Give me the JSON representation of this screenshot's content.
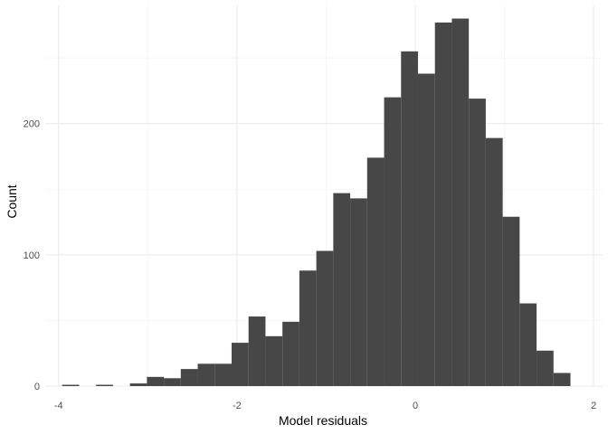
{
  "chart_data": {
    "type": "histogram",
    "xlabel": "Model residuals",
    "ylabel": "Count",
    "xlim": [
      -4.15,
      2.1
    ],
    "ylim": [
      0,
      290
    ],
    "grid": true,
    "bin_width": 0.19,
    "bins": [
      {
        "start": -3.96,
        "end": -3.77,
        "count": 1
      },
      {
        "start": -3.77,
        "end": -3.58,
        "count": 0
      },
      {
        "start": -3.58,
        "end": -3.39,
        "count": 1
      },
      {
        "start": -3.39,
        "end": -3.2,
        "count": 0
      },
      {
        "start": -3.2,
        "end": -3.01,
        "count": 2
      },
      {
        "start": -3.01,
        "end": -2.82,
        "count": 7
      },
      {
        "start": -2.82,
        "end": -2.63,
        "count": 6
      },
      {
        "start": -2.63,
        "end": -2.44,
        "count": 13
      },
      {
        "start": -2.44,
        "end": -2.25,
        "count": 17
      },
      {
        "start": -2.25,
        "end": -2.06,
        "count": 17
      },
      {
        "start": -2.06,
        "end": -1.87,
        "count": 33
      },
      {
        "start": -1.87,
        "end": -1.68,
        "count": 53
      },
      {
        "start": -1.68,
        "end": -1.49,
        "count": 38
      },
      {
        "start": -1.49,
        "end": -1.3,
        "count": 49
      },
      {
        "start": -1.3,
        "end": -1.11,
        "count": 88
      },
      {
        "start": -1.11,
        "end": -0.92,
        "count": 103
      },
      {
        "start": -0.92,
        "end": -0.73,
        "count": 147
      },
      {
        "start": -0.73,
        "end": -0.54,
        "count": 143
      },
      {
        "start": -0.54,
        "end": -0.35,
        "count": 174
      },
      {
        "start": -0.35,
        "end": -0.16,
        "count": 220
      },
      {
        "start": -0.16,
        "end": 0.03,
        "count": 255
      },
      {
        "start": 0.03,
        "end": 0.22,
        "count": 238
      },
      {
        "start": 0.22,
        "end": 0.41,
        "count": 277
      },
      {
        "start": 0.41,
        "end": 0.6,
        "count": 280
      },
      {
        "start": 0.6,
        "end": 0.79,
        "count": 219
      },
      {
        "start": 0.79,
        "end": 0.98,
        "count": 189
      },
      {
        "start": 0.98,
        "end": 1.17,
        "count": 129
      },
      {
        "start": 1.17,
        "end": 1.36,
        "count": 63
      },
      {
        "start": 1.36,
        "end": 1.55,
        "count": 27
      },
      {
        "start": 1.55,
        "end": 1.74,
        "count": 10
      }
    ],
    "x_ticks": [
      -4,
      -2,
      0,
      2
    ],
    "x_tick_labels": [
      "-4",
      "-2",
      "0",
      "2"
    ],
    "y_ticks": [
      0,
      100,
      200
    ],
    "y_tick_labels": [
      "0",
      "100",
      "200"
    ],
    "x_minor": [
      -3,
      -1,
      1
    ],
    "y_minor": [
      50,
      150,
      250
    ],
    "colors": {
      "bar": "#474747",
      "grid_major": "#ebebeb",
      "grid_minor": "#f4f4f4",
      "background": "#ffffff"
    }
  }
}
